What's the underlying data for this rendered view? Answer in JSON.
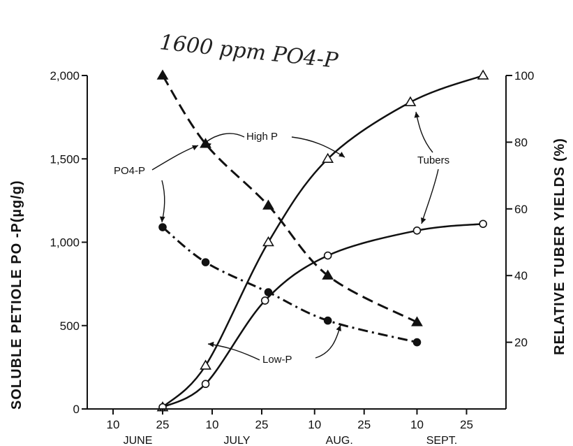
{
  "chart_data": {
    "type": "line",
    "handwritten_note": "1600 ppm PO4-P",
    "ylabel_left": "SOLUBLE PETIOLE PO -P(µg/g)",
    "ylabel_right": "RELATIVE TUBER YIELDS (%)",
    "ylim_left": [
      0,
      2000
    ],
    "ylim_right": [
      0,
      100
    ],
    "left_ticks": [
      "0",
      "500",
      "1,000",
      "1,500",
      "2,000"
    ],
    "right_ticks": [
      "20",
      "40",
      "60",
      "80",
      "100"
    ],
    "x_ticks": [
      "10",
      "25",
      "10",
      "25",
      "10",
      "25",
      "10",
      "25"
    ],
    "x_months": [
      "JUNE",
      "JULY",
      "AUG.",
      "SEPT."
    ],
    "x_date_values": [
      "06-10",
      "06-25",
      "07-10",
      "07-25",
      "08-10",
      "08-25",
      "09-10",
      "09-25"
    ],
    "grid": false,
    "annotations": {
      "high_p": "High P",
      "low_p": "Low-P",
      "po4_p": "PO4-P",
      "tubers": "Tubers"
    },
    "series": [
      {
        "key": "po4_high",
        "axis": "left",
        "style": "dashed",
        "marker": "filled-triangle",
        "points": [
          [
            "06-25",
            2000
          ],
          [
            "07-08",
            1590
          ],
          [
            "07-27",
            1220
          ],
          [
            "08-14",
            800
          ],
          [
            "09-10",
            520
          ]
        ]
      },
      {
        "key": "po4_low",
        "axis": "left",
        "style": "dashdot",
        "marker": "filled-circle",
        "points": [
          [
            "06-25",
            1090
          ],
          [
            "07-08",
            880
          ],
          [
            "07-27",
            700
          ],
          [
            "08-14",
            530
          ],
          [
            "09-10",
            400
          ]
        ]
      },
      {
        "key": "tuber_high",
        "axis": "right",
        "style": "solid",
        "marker": "open-triangle",
        "points": [
          [
            "06-25",
            0.5
          ],
          [
            "07-08",
            13
          ],
          [
            "07-27",
            50
          ],
          [
            "08-14",
            75
          ],
          [
            "09-08",
            92
          ],
          [
            "09-30",
            100
          ]
        ]
      },
      {
        "key": "tuber_low",
        "axis": "right",
        "style": "solid",
        "marker": "open-circle",
        "points": [
          [
            "06-25",
            0.5
          ],
          [
            "07-08",
            7.5
          ],
          [
            "07-26",
            32.5
          ],
          [
            "08-14",
            46
          ],
          [
            "09-10",
            53.5
          ],
          [
            "09-30",
            55.5
          ]
        ]
      }
    ]
  }
}
